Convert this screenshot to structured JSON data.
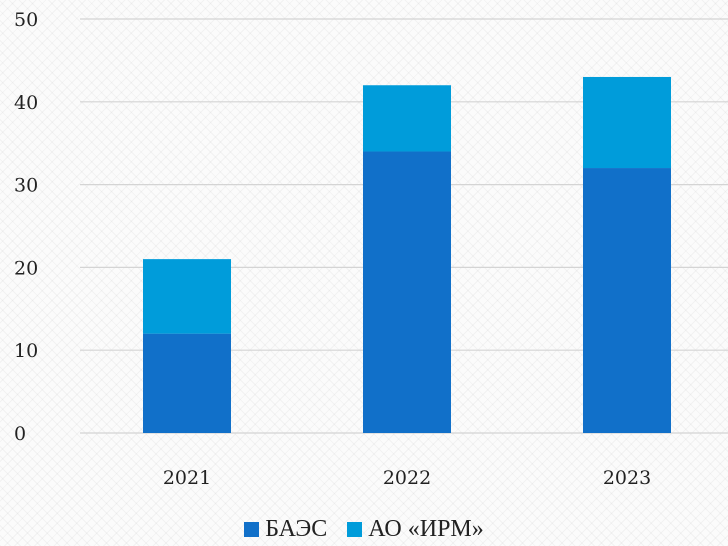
{
  "chart_data": {
    "type": "bar",
    "stacked": true,
    "categories": [
      "2021",
      "2022",
      "2023"
    ],
    "series": [
      {
        "name": "БАЭС",
        "values": [
          12,
          34,
          32
        ],
        "color": "#1170c9"
      },
      {
        "name": "АО «ИРМ»",
        "values": [
          9,
          8,
          11
        ],
        "color": "#009cda"
      }
    ],
    "y_ticks": [
      "0",
      "10",
      "20",
      "30",
      "40",
      "50"
    ],
    "ylim": [
      0,
      50
    ],
    "grid": true,
    "legend_position": "bottom",
    "title": "",
    "xlabel": "",
    "ylabel": ""
  }
}
